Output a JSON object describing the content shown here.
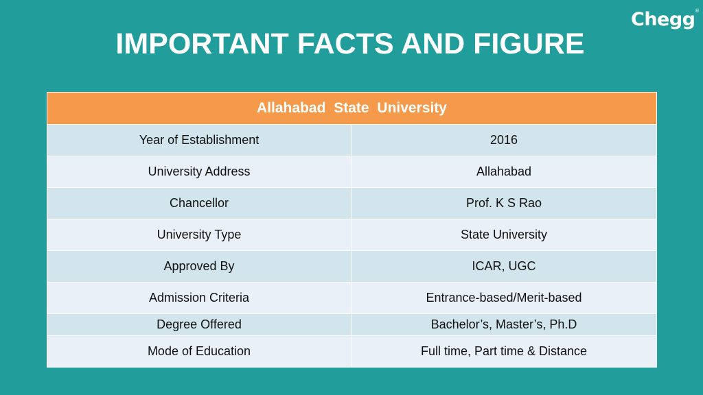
{
  "title": "IMPORTANT FACTS AND FIGURE",
  "brand": {
    "name": "Chegg",
    "mark": "®"
  },
  "table": {
    "header": "Allahabad State University",
    "rows": [
      {
        "label": "Year of Establishment",
        "value": "2016"
      },
      {
        "label": "University Address",
        "value": "Allahabad"
      },
      {
        "label": "Chancellor",
        "value": "Prof. K S Rao"
      },
      {
        "label": "University Type",
        "value": "State University"
      },
      {
        "label": "Approved By",
        "value": "ICAR, UGC"
      },
      {
        "label": "Admission Criteria",
        "value": "Entrance-based/Merit-based"
      },
      {
        "label": "Degree Offered",
        "value": "Bachelor’s, Master’s, Ph.D"
      },
      {
        "label": "Mode of Education",
        "value": "Full time, Part time & Distance"
      }
    ]
  },
  "colors": {
    "background": "#219e9b",
    "header_fill": "#f59a4a",
    "row_fill_dark": "#d2e4ec",
    "row_fill_light": "#e9f0f7",
    "title_text": "#ffffff"
  }
}
